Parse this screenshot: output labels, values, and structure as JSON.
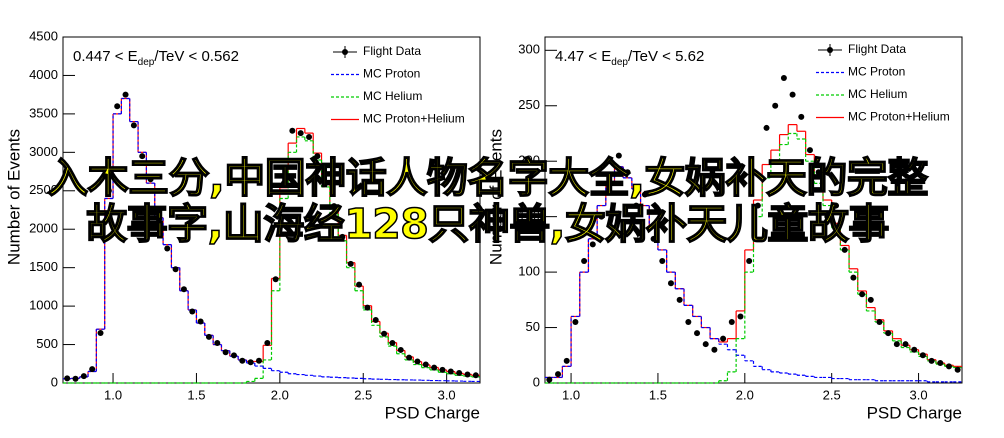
{
  "chart_data": [
    {
      "type": "histogram",
      "title": {
        "main": "0.447 < E",
        "sub": "dep",
        "rest": "/TeV < 0.562"
      },
      "x_label": "PSD Charge",
      "y_label": "Number of Events",
      "xlim": [
        0.7,
        3.2
      ],
      "ylim": [
        0,
        4500
      ],
      "xticks": [
        {
          "value": 1,
          "label": "1.0"
        },
        1.5,
        {
          "value": 2,
          "label": "2.0"
        },
        2.5,
        {
          "value": 3,
          "label": "3.0"
        }
      ],
      "yticks": [
        0,
        500,
        1000,
        1500,
        2000,
        2500,
        3000,
        3500,
        4000,
        4500
      ],
      "bins": [
        0.7,
        0.75,
        0.8,
        0.85,
        0.9,
        0.95,
        1.0,
        1.05,
        1.1,
        1.15,
        1.2,
        1.25,
        1.3,
        1.35,
        1.4,
        1.45,
        1.5,
        1.55,
        1.6,
        1.65,
        1.7,
        1.75,
        1.8,
        1.85,
        1.9,
        1.95,
        2.0,
        2.05,
        2.1,
        2.15,
        2.2,
        2.25,
        2.3,
        2.35,
        2.4,
        2.45,
        2.5,
        2.55,
        2.6,
        2.65,
        2.7,
        2.75,
        2.8,
        2.85,
        2.9,
        2.95,
        3.0,
        3.05,
        3.1,
        3.15,
        3.2
      ],
      "series": [
        {
          "name": "Flight Data",
          "color": "#000000",
          "style": "points",
          "values": [
            60,
            55,
            90,
            180,
            650,
            2500,
            3600,
            3750,
            3350,
            2950,
            2650,
            2100,
            1750,
            1480,
            1220,
            930,
            800,
            600,
            520,
            400,
            360,
            290,
            270,
            290,
            520,
            1350,
            2600,
            3280,
            3250,
            3200,
            2950,
            2600,
            2300,
            1900,
            1550,
            1280,
            980,
            820,
            640,
            520,
            430,
            330,
            280,
            240,
            200,
            170,
            150,
            130,
            110,
            100
          ]
        },
        {
          "name": "MC Proton",
          "color": "#0000ff",
          "style": "step",
          "dashed": true,
          "values": [
            55,
            60,
            80,
            150,
            700,
            2400,
            3500,
            3700,
            3400,
            3000,
            2600,
            2150,
            1800,
            1500,
            1200,
            950,
            780,
            620,
            500,
            420,
            350,
            300,
            260,
            220,
            190,
            160,
            140,
            120,
            110,
            100,
            90,
            80,
            75,
            70,
            65,
            60,
            55,
            50,
            48,
            45,
            42,
            40,
            38,
            35,
            32,
            30,
            28,
            25,
            22,
            20
          ]
        },
        {
          "name": "MC Helium",
          "color": "#00cc00",
          "style": "step",
          "dashed": true,
          "values": [
            0,
            0,
            0,
            0,
            0,
            0,
            0,
            0,
            0,
            0,
            0,
            0,
            0,
            0,
            0,
            0,
            0,
            0,
            0,
            0,
            0,
            0,
            20,
            60,
            300,
            1200,
            2400,
            3000,
            3200,
            3150,
            2900,
            2550,
            2200,
            1850,
            1500,
            1200,
            950,
            750,
            600,
            480,
            380,
            300,
            240,
            200,
            170,
            140,
            120,
            100,
            90,
            80
          ]
        },
        {
          "name": "MC Proton+Helium",
          "color": "#ff0000",
          "style": "step",
          "dashed": false,
          "values": [
            55,
            60,
            80,
            150,
            700,
            2400,
            3500,
            3700,
            3400,
            3000,
            2600,
            2150,
            1800,
            1500,
            1200,
            950,
            780,
            620,
            500,
            420,
            350,
            300,
            280,
            280,
            490,
            1360,
            2540,
            3120,
            3310,
            3250,
            2990,
            2630,
            2275,
            1920,
            1565,
            1260,
            1005,
            800,
            648,
            525,
            422,
            340,
            278,
            235,
            202,
            170,
            148,
            125,
            112,
            100
          ]
        }
      ]
    },
    {
      "type": "histogram",
      "title": {
        "main": "4.47 < E",
        "sub": "dep",
        "rest": "/TeV < 5.62"
      },
      "x_label": "PSD Charge",
      "y_label": "Number of Events",
      "xlim": [
        0.85,
        3.25
      ],
      "ylim": [
        0,
        312
      ],
      "xticks": [
        {
          "value": 1,
          "label": "1.0"
        },
        1.5,
        {
          "value": 2,
          "label": "2.0"
        },
        2.5,
        {
          "value": 3,
          "label": "3.0"
        }
      ],
      "yticks": [
        0,
        50,
        100,
        150,
        200,
        250,
        300
      ],
      "bins": [
        0.85,
        0.9,
        0.95,
        1.0,
        1.05,
        1.1,
        1.15,
        1.2,
        1.25,
        1.3,
        1.35,
        1.4,
        1.45,
        1.5,
        1.55,
        1.6,
        1.65,
        1.7,
        1.75,
        1.8,
        1.85,
        1.9,
        1.95,
        2.0,
        2.05,
        2.1,
        2.15,
        2.2,
        2.25,
        2.3,
        2.35,
        2.4,
        2.45,
        2.5,
        2.55,
        2.6,
        2.65,
        2.7,
        2.75,
        2.8,
        2.85,
        2.9,
        2.95,
        3.0,
        3.05,
        3.1,
        3.15,
        3.2,
        3.25
      ],
      "series": [
        {
          "name": "Flight Data",
          "color": "#000000",
          "style": "points",
          "values": [
            3,
            8,
            20,
            55,
            110,
            125,
            150,
            200,
            205,
            190,
            160,
            170,
            130,
            110,
            90,
            75,
            55,
            45,
            35,
            30,
            40,
            55,
            60,
            110,
            160,
            230,
            250,
            275,
            260,
            240,
            210,
            190,
            150,
            160,
            120,
            95,
            80,
            75,
            55,
            45,
            35,
            35,
            30,
            25,
            20,
            18,
            15,
            12
          ]
        },
        {
          "name": "MC Proton",
          "color": "#0000ff",
          "style": "step",
          "dashed": true,
          "values": [
            5,
            5,
            15,
            60,
            100,
            130,
            160,
            180,
            195,
            185,
            175,
            160,
            140,
            120,
            100,
            85,
            70,
            60,
            50,
            40,
            35,
            30,
            25,
            20,
            15,
            12,
            10,
            9,
            8,
            7,
            6,
            5,
            5,
            4,
            4,
            3,
            3,
            3,
            2,
            2,
            2,
            2,
            2,
            2,
            1,
            1,
            1,
            1
          ]
        },
        {
          "name": "MC Helium",
          "color": "#00cc00",
          "style": "step",
          "dashed": true,
          "values": [
            0,
            0,
            0,
            0,
            0,
            0,
            0,
            0,
            0,
            0,
            0,
            0,
            0,
            0,
            0,
            0,
            0,
            0,
            0,
            0,
            2,
            10,
            40,
            100,
            150,
            185,
            200,
            215,
            225,
            220,
            200,
            180,
            160,
            140,
            120,
            100,
            80,
            65,
            55,
            45,
            38,
            32,
            28,
            24,
            20,
            17,
            15,
            14
          ]
        },
        {
          "name": "MC Proton+Helium",
          "color": "#ff0000",
          "style": "step",
          "dashed": false,
          "values": [
            5,
            5,
            15,
            60,
            100,
            130,
            160,
            180,
            195,
            185,
            175,
            160,
            140,
            120,
            100,
            85,
            70,
            60,
            50,
            40,
            37,
            40,
            65,
            120,
            165,
            197,
            210,
            224,
            233,
            227,
            206,
            185,
            165,
            144,
            124,
            103,
            83,
            68,
            57,
            47,
            40,
            34,
            30,
            26,
            21,
            18,
            16,
            15
          ]
        }
      ]
    }
  ],
  "overlay": "入木三分,中国神话人物名字大全,女娲补天的完整故事字,山海经128只神兽,女娲补天儿童故事"
}
